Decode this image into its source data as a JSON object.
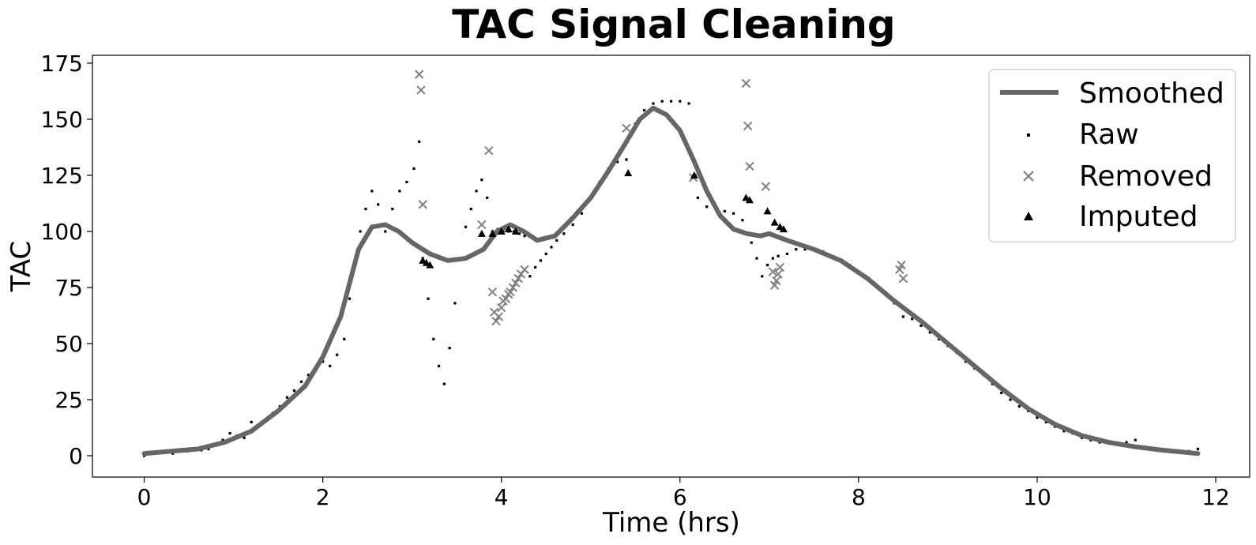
{
  "chart_data": {
    "type": "scatter",
    "title": "TAC Signal Cleaning",
    "xlabel": "Time (hrs)",
    "ylabel": "TAC",
    "xlim": [
      -0.58,
      12.38
    ],
    "ylim": [
      -9.5,
      178.5
    ],
    "xticks": [
      0,
      2,
      4,
      6,
      8,
      10,
      12
    ],
    "yticks": [
      0,
      25,
      50,
      75,
      100,
      125,
      150,
      175
    ],
    "grid": false,
    "legend_position": "top-right",
    "colors": {
      "smoothed": "#666666",
      "raw": "#000000",
      "removed": "#808080",
      "imputed": "#000000"
    },
    "series": [
      {
        "name": "Smoothed",
        "kind": "line",
        "points": [
          [
            0,
            1
          ],
          [
            0.3,
            2
          ],
          [
            0.6,
            3
          ],
          [
            0.9,
            6
          ],
          [
            1.2,
            11
          ],
          [
            1.5,
            20
          ],
          [
            1.8,
            31
          ],
          [
            2.0,
            44
          ],
          [
            2.2,
            62
          ],
          [
            2.4,
            92
          ],
          [
            2.55,
            102
          ],
          [
            2.7,
            103
          ],
          [
            2.85,
            100
          ],
          [
            3.0,
            95
          ],
          [
            3.2,
            90
          ],
          [
            3.4,
            87
          ],
          [
            3.6,
            88
          ],
          [
            3.8,
            92
          ],
          [
            3.95,
            100
          ],
          [
            4.1,
            103
          ],
          [
            4.25,
            100
          ],
          [
            4.4,
            96
          ],
          [
            4.6,
            98
          ],
          [
            4.8,
            106
          ],
          [
            5.0,
            115
          ],
          [
            5.2,
            127
          ],
          [
            5.4,
            140
          ],
          [
            5.55,
            150
          ],
          [
            5.7,
            155
          ],
          [
            5.85,
            152
          ],
          [
            6.0,
            145
          ],
          [
            6.15,
            132
          ],
          [
            6.3,
            118
          ],
          [
            6.45,
            107
          ],
          [
            6.6,
            101
          ],
          [
            6.75,
            99
          ],
          [
            6.9,
            98
          ],
          [
            7.0,
            99
          ],
          [
            7.2,
            96
          ],
          [
            7.5,
            92
          ],
          [
            7.8,
            87
          ],
          [
            8.1,
            79
          ],
          [
            8.4,
            69
          ],
          [
            8.7,
            60
          ],
          [
            9.0,
            50
          ],
          [
            9.3,
            40
          ],
          [
            9.6,
            30
          ],
          [
            9.9,
            21
          ],
          [
            10.2,
            14
          ],
          [
            10.5,
            9
          ],
          [
            10.8,
            6
          ],
          [
            11.1,
            4
          ],
          [
            11.4,
            2.5
          ],
          [
            11.8,
            1
          ]
        ]
      },
      {
        "name": "Raw",
        "kind": "dots",
        "points": [
          [
            0,
            0
          ],
          [
            0.08,
            1
          ],
          [
            0.16,
            1.5
          ],
          [
            0.24,
            2
          ],
          [
            0.32,
            1
          ],
          [
            0.4,
            2.5
          ],
          [
            0.48,
            2
          ],
          [
            0.56,
            3
          ],
          [
            0.64,
            2.5
          ],
          [
            0.72,
            3
          ],
          [
            0.8,
            5
          ],
          [
            0.88,
            7
          ],
          [
            0.96,
            10
          ],
          [
            1.04,
            9
          ],
          [
            1.12,
            8
          ],
          [
            1.2,
            15
          ],
          [
            1.28,
            13
          ],
          [
            1.36,
            16
          ],
          [
            1.44,
            19
          ],
          [
            1.52,
            22
          ],
          [
            1.6,
            26
          ],
          [
            1.68,
            29
          ],
          [
            1.76,
            33
          ],
          [
            1.84,
            36
          ],
          [
            1.92,
            38
          ],
          [
            2.0,
            42
          ],
          [
            2.08,
            40
          ],
          [
            2.16,
            45
          ],
          [
            2.24,
            52
          ],
          [
            2.3,
            70
          ],
          [
            2.36,
            85
          ],
          [
            2.42,
            100
          ],
          [
            2.48,
            110
          ],
          [
            2.55,
            118
          ],
          [
            2.62,
            112
          ],
          [
            2.7,
            100
          ],
          [
            2.78,
            110
          ],
          [
            2.86,
            118
          ],
          [
            2.94,
            122
          ],
          [
            3.02,
            128
          ],
          [
            3.08,
            140
          ],
          [
            3.12,
            88
          ],
          [
            3.18,
            70
          ],
          [
            3.24,
            52
          ],
          [
            3.3,
            40
          ],
          [
            3.36,
            32
          ],
          [
            3.42,
            48
          ],
          [
            3.48,
            68
          ],
          [
            3.54,
            88
          ],
          [
            3.6,
            102
          ],
          [
            3.66,
            110
          ],
          [
            3.72,
            118
          ],
          [
            3.78,
            123
          ],
          [
            3.84,
            115
          ],
          [
            3.9,
            100
          ],
          [
            3.96,
            101
          ],
          [
            4.02,
            100
          ],
          [
            4.08,
            100
          ],
          [
            4.14,
            100
          ],
          [
            4.2,
            99
          ],
          [
            4.26,
            98
          ],
          [
            4.32,
            80
          ],
          [
            4.38,
            84
          ],
          [
            4.44,
            87
          ],
          [
            4.5,
            90
          ],
          [
            4.56,
            93
          ],
          [
            4.62,
            96
          ],
          [
            4.7,
            99
          ],
          [
            4.8,
            103
          ],
          [
            4.9,
            108
          ],
          [
            5.0,
            115
          ],
          [
            5.1,
            122
          ],
          [
            5.2,
            128
          ],
          [
            5.3,
            131
          ],
          [
            5.4,
            132
          ],
          [
            5.5,
            148
          ],
          [
            5.6,
            154
          ],
          [
            5.7,
            157
          ],
          [
            5.8,
            158
          ],
          [
            5.9,
            158
          ],
          [
            6.0,
            158
          ],
          [
            6.1,
            157
          ],
          [
            6.15,
            124
          ],
          [
            6.2,
            115
          ],
          [
            6.3,
            111
          ],
          [
            6.4,
            110
          ],
          [
            6.5,
            109
          ],
          [
            6.6,
            108
          ],
          [
            6.7,
            105
          ],
          [
            6.8,
            95
          ],
          [
            6.86,
            88
          ],
          [
            6.92,
            80
          ],
          [
            6.98,
            85
          ],
          [
            7.04,
            88
          ],
          [
            7.1,
            89
          ],
          [
            7.2,
            90
          ],
          [
            7.3,
            92
          ],
          [
            7.4,
            92
          ],
          [
            7.5,
            92
          ],
          [
            7.6,
            91
          ],
          [
            7.7,
            89
          ],
          [
            7.8,
            87
          ],
          [
            7.9,
            85
          ],
          [
            8.0,
            82
          ],
          [
            8.1,
            79
          ],
          [
            8.2,
            76
          ],
          [
            8.3,
            72
          ],
          [
            8.4,
            68
          ],
          [
            8.5,
            62
          ],
          [
            8.6,
            61
          ],
          [
            8.7,
            58
          ],
          [
            8.8,
            55
          ],
          [
            8.9,
            52
          ],
          [
            9.0,
            49
          ],
          [
            9.1,
            46
          ],
          [
            9.2,
            42
          ],
          [
            9.3,
            39
          ],
          [
            9.4,
            36
          ],
          [
            9.5,
            32
          ],
          [
            9.6,
            28
          ],
          [
            9.7,
            25
          ],
          [
            9.8,
            22
          ],
          [
            9.9,
            20
          ],
          [
            10.0,
            17
          ],
          [
            10.1,
            15
          ],
          [
            10.2,
            13
          ],
          [
            10.3,
            11
          ],
          [
            10.4,
            10
          ],
          [
            10.5,
            8
          ],
          [
            10.6,
            7
          ],
          [
            10.7,
            6
          ],
          [
            10.8,
            6
          ],
          [
            10.9,
            5
          ],
          [
            11.0,
            6
          ],
          [
            11.1,
            7
          ],
          [
            11.2,
            4
          ],
          [
            11.3,
            3
          ],
          [
            11.4,
            3
          ],
          [
            11.5,
            2.5
          ],
          [
            11.6,
            2
          ],
          [
            11.7,
            2
          ],
          [
            11.8,
            3
          ]
        ]
      },
      {
        "name": "Removed",
        "kind": "x-markers",
        "points": [
          [
            3.08,
            170
          ],
          [
            3.1,
            163
          ],
          [
            3.12,
            112
          ],
          [
            3.78,
            103
          ],
          [
            3.86,
            136
          ],
          [
            3.9,
            73
          ],
          [
            3.92,
            64
          ],
          [
            3.94,
            60
          ],
          [
            3.97,
            62
          ],
          [
            4.0,
            66
          ],
          [
            4.02,
            69
          ],
          [
            4.05,
            70
          ],
          [
            4.08,
            72
          ],
          [
            4.1,
            73
          ],
          [
            4.13,
            75
          ],
          [
            4.16,
            77
          ],
          [
            4.19,
            79
          ],
          [
            4.22,
            81
          ],
          [
            4.26,
            83
          ],
          [
            5.4,
            146
          ],
          [
            6.15,
            124
          ],
          [
            6.74,
            166
          ],
          [
            6.76,
            147
          ],
          [
            6.78,
            129
          ],
          [
            6.96,
            120
          ],
          [
            7.04,
            82
          ],
          [
            7.06,
            76
          ],
          [
            7.08,
            78
          ],
          [
            7.1,
            81
          ],
          [
            7.12,
            84
          ],
          [
            8.46,
            83
          ],
          [
            8.48,
            85
          ],
          [
            8.5,
            79
          ]
        ]
      },
      {
        "name": "Imputed",
        "kind": "triangles",
        "points": [
          [
            3.12,
            87
          ],
          [
            3.16,
            86
          ],
          [
            3.2,
            85
          ],
          [
            3.78,
            99
          ],
          [
            3.9,
            99
          ],
          [
            4.0,
            100
          ],
          [
            4.08,
            101
          ],
          [
            4.16,
            100
          ],
          [
            5.42,
            126
          ],
          [
            6.16,
            125
          ],
          [
            6.74,
            115
          ],
          [
            6.78,
            114
          ],
          [
            6.98,
            109
          ],
          [
            7.06,
            104
          ],
          [
            7.12,
            102
          ],
          [
            7.16,
            101
          ]
        ]
      }
    ]
  }
}
